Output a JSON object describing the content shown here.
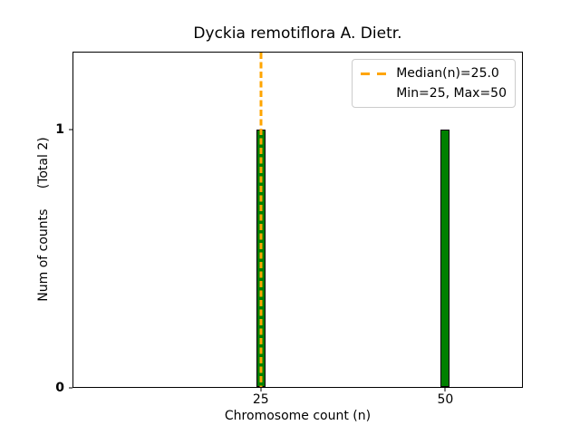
{
  "chart_data": {
    "type": "bar",
    "title": "Dyckia remotiflora A. Dietr.",
    "xlabel": "Chromosome count (n)",
    "ylabel": "Num of counts     (Total 2)",
    "x": [
      25,
      50
    ],
    "values": [
      1,
      1
    ],
    "total_counts": 2,
    "median_n": 25.0,
    "min_n": 25,
    "max_n": 50,
    "bar_width_x": 1.3,
    "xlim": [
      -0.5,
      60.5
    ],
    "ylim": [
      0,
      1.3
    ],
    "xticks": [
      "25",
      "50"
    ],
    "xtick_values": [
      25,
      50
    ],
    "yticks": [
      "0",
      "1"
    ],
    "ytick_values": [
      0,
      1
    ],
    "grid": false,
    "legend_position": "upper right",
    "legend": [
      "Median(n)=25.0",
      "Min=25, Max=50"
    ],
    "colors": {
      "bar_fill": "#008000",
      "bar_edge": "#000000",
      "median_line": "#FFA500",
      "axis": "#000000",
      "text": "#000000",
      "legend_border": "#cccccc"
    }
  }
}
